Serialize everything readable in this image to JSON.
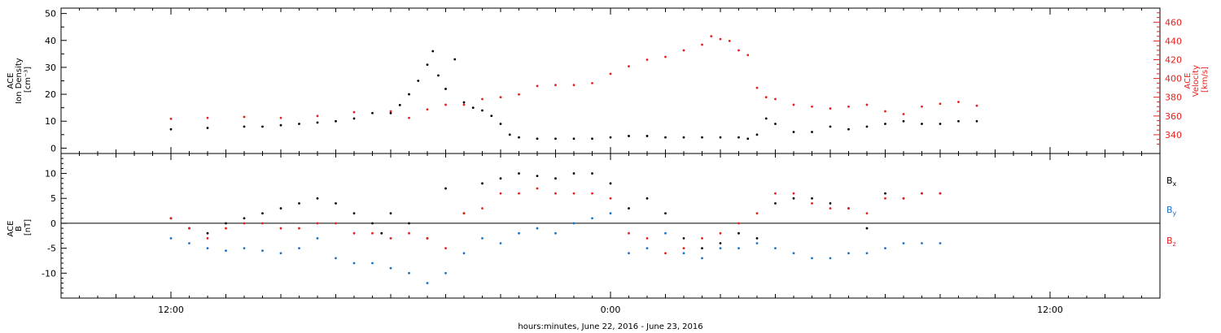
{
  "chart_data": [
    {
      "type": "scatter",
      "panel": "top",
      "ylabel_left_lines": [
        "ACE",
        "Ion Density",
        "[cm⁻³]"
      ],
      "ylabel_right_lines": [
        "ACE",
        "Velocity",
        "[km/s]"
      ],
      "ylim_left": [
        -2,
        52
      ],
      "ylim_right": [
        320,
        475
      ],
      "left_ticks": [
        0,
        10,
        20,
        30,
        40,
        50
      ],
      "right_ticks": [
        340,
        360,
        380,
        400,
        420,
        440,
        460
      ],
      "series": [
        {
          "name": "",
          "axis": "left",
          "color": "#000000",
          "points": [
            [
              6,
              7
            ],
            [
              8,
              7.5
            ],
            [
              10,
              8
            ],
            [
              11,
              8
            ],
            [
              12,
              8.5
            ],
            [
              13,
              9
            ],
            [
              14,
              9.5
            ],
            [
              15,
              10
            ],
            [
              16,
              11
            ],
            [
              17,
              13
            ],
            [
              18,
              13
            ],
            [
              18.5,
              16
            ],
            [
              19,
              20
            ],
            [
              19.5,
              25
            ],
            [
              20,
              31
            ],
            [
              20.3,
              36
            ],
            [
              20.6,
              27
            ],
            [
              21,
              22
            ],
            [
              21.5,
              33
            ],
            [
              22,
              17
            ],
            [
              22.5,
              15
            ],
            [
              23,
              14
            ],
            [
              23.5,
              12
            ],
            [
              24,
              9
            ],
            [
              24.5,
              5
            ],
            [
              25,
              4
            ],
            [
              26,
              3.5
            ],
            [
              27,
              3.5
            ],
            [
              28,
              3.5
            ],
            [
              29,
              3.5
            ],
            [
              30,
              4
            ],
            [
              31,
              4.5
            ],
            [
              32,
              4.5
            ],
            [
              33,
              4
            ],
            [
              34,
              4
            ],
            [
              35,
              4
            ],
            [
              36,
              4
            ],
            [
              37,
              4
            ],
            [
              37.5,
              3.5
            ],
            [
              38,
              5
            ],
            [
              38.5,
              11
            ],
            [
              39,
              9
            ],
            [
              40,
              6
            ],
            [
              41,
              6
            ],
            [
              42,
              8
            ],
            [
              43,
              7
            ],
            [
              44,
              8
            ],
            [
              45,
              9
            ],
            [
              46,
              10
            ],
            [
              47,
              9
            ],
            [
              48,
              9
            ],
            [
              49,
              10
            ],
            [
              50,
              10
            ]
          ]
        },
        {
          "name": "",
          "axis": "right",
          "color": "#e8201c",
          "points": [
            [
              6,
              357
            ],
            [
              8,
              358
            ],
            [
              10,
              359
            ],
            [
              12,
              358
            ],
            [
              14,
              360
            ],
            [
              16,
              364
            ],
            [
              18,
              365
            ],
            [
              19,
              358
            ],
            [
              20,
              367
            ],
            [
              21,
              372
            ],
            [
              22,
              372
            ],
            [
              23,
              378
            ],
            [
              24,
              380
            ],
            [
              25,
              383
            ],
            [
              26,
              392
            ],
            [
              27,
              393
            ],
            [
              28,
              393
            ],
            [
              29,
              395
            ],
            [
              30,
              405
            ],
            [
              31,
              413
            ],
            [
              32,
              420
            ],
            [
              33,
              423
            ],
            [
              34,
              430
            ],
            [
              35,
              436
            ],
            [
              35.5,
              445
            ],
            [
              36,
              442
            ],
            [
              36.5,
              440
            ],
            [
              37,
              430
            ],
            [
              37.5,
              425
            ],
            [
              38,
              390
            ],
            [
              38.5,
              380
            ],
            [
              39,
              378
            ],
            [
              40,
              372
            ],
            [
              41,
              370
            ],
            [
              42,
              368
            ],
            [
              43,
              370
            ],
            [
              44,
              372
            ],
            [
              45,
              365
            ],
            [
              46,
              362
            ],
            [
              47,
              370
            ],
            [
              48,
              373
            ],
            [
              49,
              375
            ],
            [
              50,
              371
            ]
          ]
        }
      ]
    },
    {
      "type": "scatter",
      "panel": "bottom",
      "ylabel_left_lines": [
        "ACE",
        "B",
        "[nT]"
      ],
      "ylim": [
        -15,
        14
      ],
      "ticks": [
        -10,
        -5,
        0,
        5,
        10
      ],
      "series": [
        {
          "name": "B",
          "subscript": "x",
          "color": "#000000",
          "points": [
            [
              6,
              1
            ],
            [
              7,
              -1
            ],
            [
              8,
              -2
            ],
            [
              9,
              0
            ],
            [
              10,
              1
            ],
            [
              11,
              2
            ],
            [
              12,
              3
            ],
            [
              13,
              4
            ],
            [
              14,
              5
            ],
            [
              15,
              4
            ],
            [
              16,
              2
            ],
            [
              17,
              0
            ],
            [
              17.5,
              -2
            ],
            [
              18,
              2
            ],
            [
              19,
              0
            ],
            [
              20,
              -3
            ],
            [
              21,
              7
            ],
            [
              22,
              2
            ],
            [
              23,
              8
            ],
            [
              24,
              9
            ],
            [
              25,
              10
            ],
            [
              26,
              9.5
            ],
            [
              27,
              9
            ],
            [
              28,
              10
            ],
            [
              29,
              10
            ],
            [
              30,
              8
            ],
            [
              31,
              3
            ],
            [
              32,
              5
            ],
            [
              33,
              2
            ],
            [
              34,
              -3
            ],
            [
              35,
              -5
            ],
            [
              36,
              -4
            ],
            [
              37,
              -2
            ],
            [
              38,
              -3
            ],
            [
              39,
              4
            ],
            [
              40,
              5
            ],
            [
              41,
              5
            ],
            [
              42,
              4
            ],
            [
              43,
              3
            ],
            [
              44,
              -1
            ],
            [
              45,
              6
            ],
            [
              46,
              5
            ],
            [
              47,
              6
            ],
            [
              48,
              6
            ]
          ]
        },
        {
          "name": "B",
          "subscript": "y",
          "color": "#1a73c9",
          "points": [
            [
              6,
              -3
            ],
            [
              7,
              -4
            ],
            [
              8,
              -5
            ],
            [
              9,
              -5.5
            ],
            [
              10,
              -5
            ],
            [
              11,
              -5.5
            ],
            [
              12,
              -6
            ],
            [
              13,
              -5
            ],
            [
              14,
              -3
            ],
            [
              15,
              -7
            ],
            [
              16,
              -8
            ],
            [
              17,
              -8
            ],
            [
              18,
              -9
            ],
            [
              19,
              -10
            ],
            [
              20,
              -12
            ],
            [
              21,
              -10
            ],
            [
              22,
              -6
            ],
            [
              23,
              -3
            ],
            [
              24,
              -4
            ],
            [
              25,
              -2
            ],
            [
              26,
              -1
            ],
            [
              27,
              -2
            ],
            [
              28,
              0
            ],
            [
              29,
              1
            ],
            [
              30,
              2
            ],
            [
              31,
              -6
            ],
            [
              32,
              -5
            ],
            [
              33,
              -2
            ],
            [
              34,
              -6
            ],
            [
              35,
              -7
            ],
            [
              36,
              -5
            ],
            [
              37,
              -5
            ],
            [
              38,
              -4
            ],
            [
              39,
              -5
            ],
            [
              40,
              -6
            ],
            [
              41,
              -7
            ],
            [
              42,
              -7
            ],
            [
              43,
              -6
            ],
            [
              44,
              -6
            ],
            [
              45,
              -5
            ],
            [
              46,
              -4
            ],
            [
              47,
              -4
            ],
            [
              48,
              -4
            ]
          ]
        },
        {
          "name": "B",
          "subscript": "z",
          "color": "#e8201c",
          "points": [
            [
              6,
              1
            ],
            [
              7,
              -1
            ],
            [
              8,
              -3
            ],
            [
              9,
              -1
            ],
            [
              10,
              0
            ],
            [
              11,
              0
            ],
            [
              12,
              -1
            ],
            [
              13,
              -1
            ],
            [
              14,
              0
            ],
            [
              15,
              0
            ],
            [
              16,
              -2
            ],
            [
              17,
              -2
            ],
            [
              18,
              -3
            ],
            [
              19,
              -2
            ],
            [
              20,
              -3
            ],
            [
              21,
              -5
            ],
            [
              22,
              2
            ],
            [
              23,
              3
            ],
            [
              24,
              6
            ],
            [
              25,
              6
            ],
            [
              26,
              7
            ],
            [
              27,
              6
            ],
            [
              28,
              6
            ],
            [
              29,
              6
            ],
            [
              30,
              5
            ],
            [
              31,
              -2
            ],
            [
              32,
              -3
            ],
            [
              33,
              -6
            ],
            [
              34,
              -5
            ],
            [
              35,
              -3
            ],
            [
              36,
              -2
            ],
            [
              37,
              0
            ],
            [
              38,
              2
            ],
            [
              39,
              6
            ],
            [
              40,
              6
            ],
            [
              41,
              4
            ],
            [
              42,
              3
            ],
            [
              43,
              3
            ],
            [
              44,
              2
            ],
            [
              45,
              5
            ],
            [
              46,
              5
            ],
            [
              47,
              6
            ],
            [
              48,
              6
            ]
          ]
        }
      ]
    },
    {
      "type": "axis",
      "panel": "time",
      "xlim": [
        0,
        60
      ],
      "x_ticks": [
        {
          "x": 6,
          "label": "12:00"
        },
        {
          "x": 30,
          "label": "0:00"
        },
        {
          "x": 54,
          "label": "12:00"
        }
      ],
      "xlabel": "hours:minutes, June 22, 2016 - June 23, 2016"
    }
  ]
}
